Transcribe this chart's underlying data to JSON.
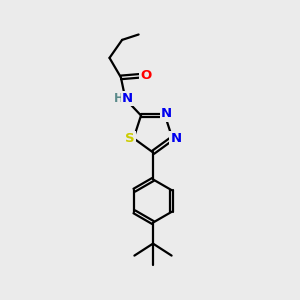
{
  "bg_color": "#ebebeb",
  "atom_colors": {
    "C": "#000000",
    "N": "#0000ee",
    "O": "#ff0000",
    "S": "#cccc00",
    "H": "#5a8a8a"
  },
  "bond_width": 1.6,
  "font_size": 9.5
}
